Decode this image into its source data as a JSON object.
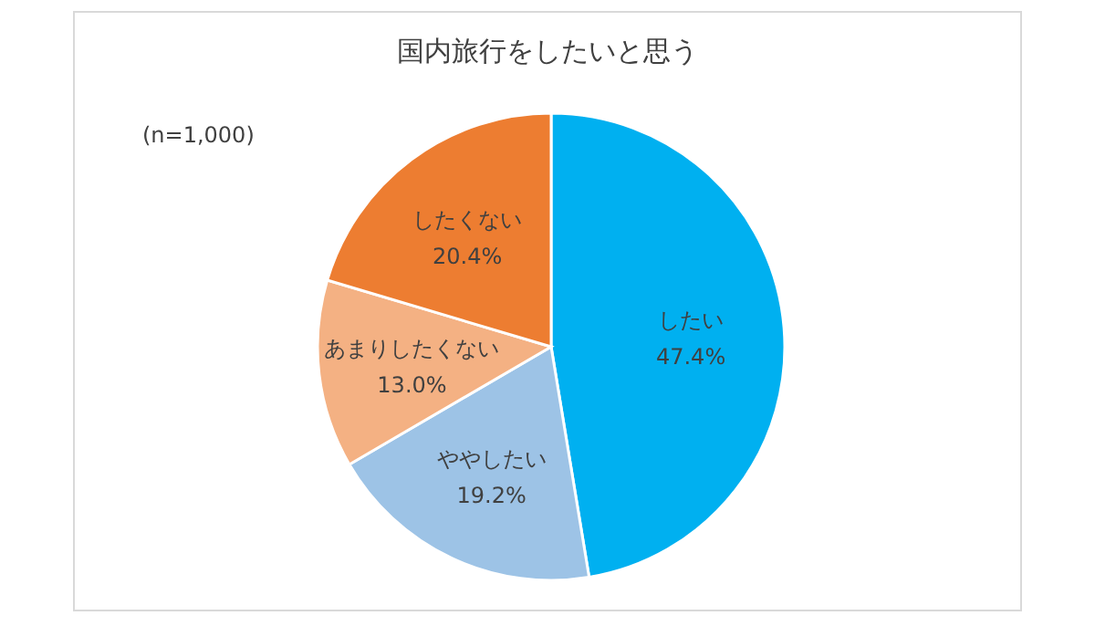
{
  "chart_data": {
    "type": "pie",
    "title": "国内旅行をしたいと思う",
    "annotations": [
      "(n=1,000)"
    ],
    "categories": [
      "したい",
      "ややしたい",
      "あまりしたくない",
      "したくない"
    ],
    "values": [
      47.4,
      19.2,
      13.0,
      20.4
    ],
    "colors": [
      "#00b0f0",
      "#9dc3e6",
      "#f4b183",
      "#ed7d31"
    ],
    "value_labels": [
      "47.4%",
      "19.2%",
      "13.0%",
      "20.4%"
    ],
    "legend": false
  }
}
